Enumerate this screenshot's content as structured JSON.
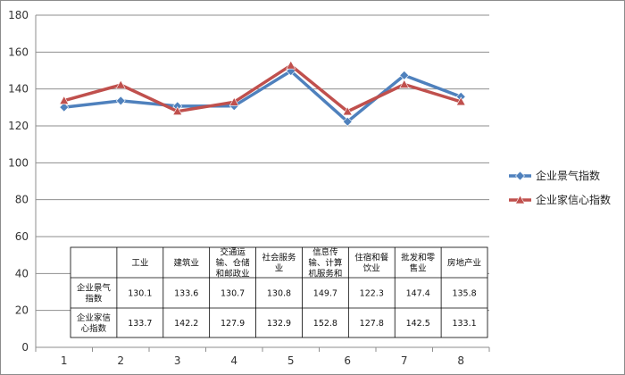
{
  "chart_data": {
    "type": "line",
    "x": [
      1,
      2,
      3,
      4,
      5,
      6,
      7,
      8
    ],
    "ylim": [
      0,
      180
    ],
    "yticks": [
      0,
      20,
      40,
      60,
      80,
      100,
      120,
      140,
      160,
      180
    ],
    "grid": "horizontal",
    "legend_position": "right",
    "series": [
      {
        "name": "企业景气指数",
        "color": "#4f81bd",
        "marker": "diamond",
        "values": [
          130.1,
          133.6,
          130.7,
          130.8,
          149.7,
          122.3,
          147.4,
          135.8
        ]
      },
      {
        "name": "企业家信心指数",
        "color": "#c0504d",
        "marker": "triangle",
        "values": [
          133.7,
          142.2,
          127.9,
          132.9,
          152.8,
          127.8,
          142.5,
          133.1
        ]
      }
    ],
    "table": {
      "columns": [
        [
          "工业"
        ],
        [
          "建筑业"
        ],
        [
          "交通运",
          "输、仓储",
          "和邮政业"
        ],
        [
          "社会服务",
          "业"
        ],
        [
          "信息传",
          "输、计算",
          "机服务和"
        ],
        [
          "住宿和餐",
          "饮业"
        ],
        [
          "批发和零",
          "售业"
        ],
        [
          "房地产业"
        ]
      ],
      "rows": [
        {
          "label": [
            "企业景气",
            "指数"
          ],
          "values": [
            "130.1",
            "133.6",
            "130.7",
            "130.8",
            "149.7",
            "122.3",
            "147.4",
            "135.8"
          ]
        },
        {
          "label": [
            "企业家信",
            "心指数"
          ],
          "values": [
            "133.7",
            "142.2",
            "127.9",
            "132.9",
            "152.8",
            "127.8",
            "142.5",
            "133.1"
          ]
        }
      ]
    }
  }
}
